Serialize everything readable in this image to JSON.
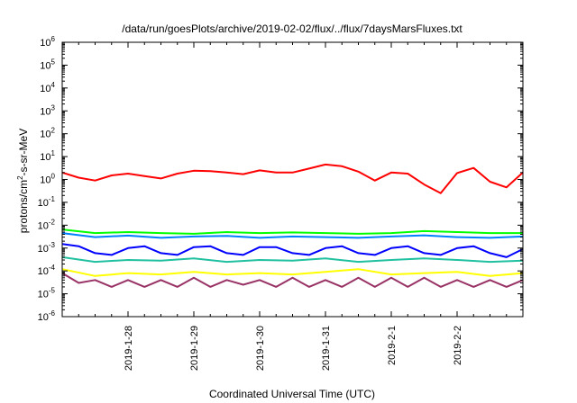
{
  "chart_data": {
    "type": "line",
    "title": "/data/run/goesPlots/archive/2019-02-02/flux/../flux/7daysMarsFluxes.txt",
    "xlabel": "Coordinated Universal Time (UTC)",
    "ylabel": "protons/cm2-s-sr-MeV",
    "ylabel_parts": {
      "pre": "protons/cm",
      "sup": "2",
      "post": "-s-sr-MeV"
    },
    "yscale": "log",
    "ylim": [
      1e-06,
      1000000.0
    ],
    "xlim": [
      "2019-01-27 00:00",
      "2019-02-03 00:00"
    ],
    "x_tick_positions": [
      "2019-01-28",
      "2019-01-29",
      "2019-01-30",
      "2019-01-31",
      "2019-02-01",
      "2019-02-02"
    ],
    "x_tick_labels": [
      "2019-1-28",
      "2019-1-29",
      "2019-1-30",
      "2019-1-31",
      "2019-2-1",
      "2019-2-2"
    ],
    "y_ticks": [
      {
        "base": "10",
        "exp": "-6"
      },
      {
        "base": "10",
        "exp": "-5"
      },
      {
        "base": "10",
        "exp": "-4"
      },
      {
        "base": "10",
        "exp": "-3"
      },
      {
        "base": "10",
        "exp": "-2"
      },
      {
        "base": "10",
        "exp": "-1"
      },
      {
        "base": "10",
        "exp": "0"
      },
      {
        "base": "10",
        "exp": "1"
      },
      {
        "base": "10",
        "exp": "2"
      },
      {
        "base": "10",
        "exp": "3"
      },
      {
        "base": "10",
        "exp": "4"
      },
      {
        "base": "10",
        "exp": "5"
      },
      {
        "base": "10",
        "exp": "6"
      }
    ],
    "grid": false,
    "legend": "none",
    "series": [
      {
        "color": "#ff0000",
        "x": [
          "2019-01-27 00:00",
          "2019-01-27 06:00",
          "2019-01-27 12:00",
          "2019-01-27 18:00",
          "2019-01-28 00:00",
          "2019-01-28 06:00",
          "2019-01-28 12:00",
          "2019-01-28 18:00",
          "2019-01-29 00:00",
          "2019-01-29 06:00",
          "2019-01-29 12:00",
          "2019-01-29 18:00",
          "2019-01-30 00:00",
          "2019-01-30 06:00",
          "2019-01-30 12:00",
          "2019-01-30 18:00",
          "2019-01-31 00:00",
          "2019-01-31 06:00",
          "2019-01-31 12:00",
          "2019-01-31 18:00",
          "2019-02-01 00:00",
          "2019-02-01 06:00",
          "2019-02-01 12:00",
          "2019-02-01 18:00",
          "2019-02-02 00:00",
          "2019-02-02 06:00",
          "2019-02-02 12:00",
          "2019-02-02 18:00",
          "2019-02-03 00:00"
        ],
        "y": [
          2.0,
          1.2,
          0.9,
          1.5,
          1.8,
          1.4,
          1.1,
          1.8,
          2.4,
          2.3,
          2.0,
          1.7,
          2.5,
          2.0,
          2.0,
          3.0,
          4.5,
          3.8,
          2.2,
          0.9,
          2.0,
          1.8,
          0.6,
          0.25,
          1.9,
          3.2,
          0.8,
          0.45,
          2.0
        ]
      },
      {
        "color": "#00ff00",
        "x": [
          "2019-01-27 00:00",
          "2019-01-27 12:00",
          "2019-01-28 00:00",
          "2019-01-28 12:00",
          "2019-01-29 00:00",
          "2019-01-29 12:00",
          "2019-01-30 00:00",
          "2019-01-30 12:00",
          "2019-01-31 00:00",
          "2019-01-31 12:00",
          "2019-02-01 00:00",
          "2019-02-01 12:00",
          "2019-02-02 00:00",
          "2019-02-02 12:00",
          "2019-02-03 00:00"
        ],
        "y": [
          0.0065,
          0.0045,
          0.005,
          0.0045,
          0.0042,
          0.005,
          0.0045,
          0.0048,
          0.0045,
          0.0042,
          0.0045,
          0.0055,
          0.005,
          0.0045,
          0.0045
        ]
      },
      {
        "color": "#0080ff",
        "x": [
          "2019-01-27 00:00",
          "2019-01-27 12:00",
          "2019-01-28 00:00",
          "2019-01-28 12:00",
          "2019-01-29 00:00",
          "2019-01-29 12:00",
          "2019-01-30 00:00",
          "2019-01-30 12:00",
          "2019-01-31 00:00",
          "2019-01-31 12:00",
          "2019-02-01 00:00",
          "2019-02-01 12:00",
          "2019-02-02 00:00",
          "2019-02-02 12:00",
          "2019-02-03 00:00"
        ],
        "y": [
          0.0045,
          0.003,
          0.0035,
          0.0028,
          0.0032,
          0.0034,
          0.0028,
          0.0032,
          0.003,
          0.0028,
          0.0032,
          0.0036,
          0.003,
          0.0028,
          0.0032
        ]
      },
      {
        "color": "#0000ff",
        "x": [
          "2019-01-27 00:00",
          "2019-01-27 06:00",
          "2019-01-27 12:00",
          "2019-01-27 18:00",
          "2019-01-28 00:00",
          "2019-01-28 06:00",
          "2019-01-28 12:00",
          "2019-01-28 18:00",
          "2019-01-29 00:00",
          "2019-01-29 06:00",
          "2019-01-29 12:00",
          "2019-01-29 18:00",
          "2019-01-30 00:00",
          "2019-01-30 06:00",
          "2019-01-30 12:00",
          "2019-01-30 18:00",
          "2019-01-31 00:00",
          "2019-01-31 06:00",
          "2019-01-31 12:00",
          "2019-01-31 18:00",
          "2019-02-01 00:00",
          "2019-02-01 06:00",
          "2019-02-01 12:00",
          "2019-02-01 18:00",
          "2019-02-02 00:00",
          "2019-02-02 06:00",
          "2019-02-02 12:00",
          "2019-02-02 18:00",
          "2019-02-03 00:00"
        ],
        "y": [
          0.0015,
          0.0012,
          0.0006,
          0.0005,
          0.001,
          0.0012,
          0.0006,
          0.0005,
          0.0011,
          0.0012,
          0.0006,
          0.0005,
          0.0011,
          0.0011,
          0.0006,
          0.0005,
          0.001,
          0.0012,
          0.0006,
          0.0005,
          0.001,
          0.0012,
          0.0006,
          0.0005,
          0.001,
          0.0012,
          0.0006,
          0.0004,
          0.0009
        ]
      },
      {
        "color": "#20c0a0",
        "x": [
          "2019-01-27 00:00",
          "2019-01-27 12:00",
          "2019-01-28 00:00",
          "2019-01-28 12:00",
          "2019-01-29 00:00",
          "2019-01-29 12:00",
          "2019-01-30 00:00",
          "2019-01-30 12:00",
          "2019-01-31 00:00",
          "2019-01-31 12:00",
          "2019-02-01 00:00",
          "2019-02-01 12:00",
          "2019-02-02 00:00",
          "2019-02-02 12:00",
          "2019-02-03 00:00"
        ],
        "y": [
          0.0004,
          0.00025,
          0.0003,
          0.00028,
          0.00035,
          0.00025,
          0.0003,
          0.00028,
          0.00035,
          0.00025,
          0.0003,
          0.00035,
          0.0003,
          0.00025,
          0.00028
        ]
      },
      {
        "color": "#ffff00",
        "x": [
          "2019-01-27 00:00",
          "2019-01-27 12:00",
          "2019-01-28 00:00",
          "2019-01-28 12:00",
          "2019-01-29 00:00",
          "2019-01-29 12:00",
          "2019-01-30 00:00",
          "2019-01-30 12:00",
          "2019-01-31 00:00",
          "2019-01-31 12:00",
          "2019-02-01 00:00",
          "2019-02-01 12:00",
          "2019-02-02 00:00",
          "2019-02-02 12:00",
          "2019-02-03 00:00"
        ],
        "y": [
          0.00012,
          6e-05,
          8e-05,
          7e-05,
          9e-05,
          7e-05,
          8e-05,
          7e-05,
          9e-05,
          0.00012,
          7e-05,
          8e-05,
          9e-05,
          6e-05,
          8e-05
        ]
      },
      {
        "color": "#993366",
        "x": [
          "2019-01-27 00:00",
          "2019-01-27 06:00",
          "2019-01-27 12:00",
          "2019-01-27 18:00",
          "2019-01-28 00:00",
          "2019-01-28 06:00",
          "2019-01-28 12:00",
          "2019-01-28 18:00",
          "2019-01-29 00:00",
          "2019-01-29 06:00",
          "2019-01-29 12:00",
          "2019-01-29 18:00",
          "2019-01-30 00:00",
          "2019-01-30 06:00",
          "2019-01-30 12:00",
          "2019-01-30 18:00",
          "2019-01-31 00:00",
          "2019-01-31 06:00",
          "2019-01-31 12:00",
          "2019-01-31 18:00",
          "2019-02-01 00:00",
          "2019-02-01 06:00",
          "2019-02-01 12:00",
          "2019-02-01 18:00",
          "2019-02-02 00:00",
          "2019-02-02 06:00",
          "2019-02-02 12:00",
          "2019-02-02 18:00",
          "2019-02-03 00:00"
        ],
        "y": [
          8e-05,
          3e-05,
          4e-05,
          2e-05,
          4e-05,
          2e-05,
          4e-05,
          2e-05,
          5e-05,
          2e-05,
          4e-05,
          2.5e-05,
          4e-05,
          2e-05,
          5e-05,
          2e-05,
          4e-05,
          2e-05,
          5e-05,
          2e-05,
          5e-05,
          2e-05,
          5e-05,
          2e-05,
          4e-05,
          2e-05,
          4e-05,
          2e-05,
          4e-05
        ]
      }
    ]
  }
}
